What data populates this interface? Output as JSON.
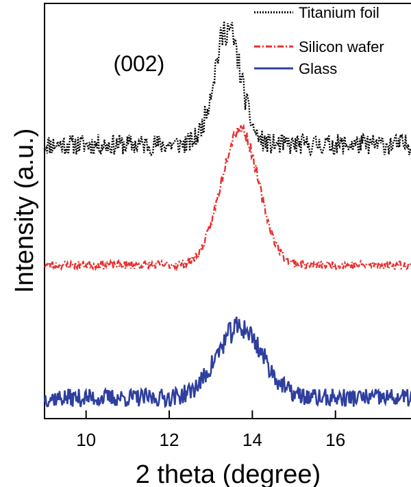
{
  "chart_data": {
    "type": "line",
    "xlabel": "2 theta (degree)",
    "ylabel": "Intensity (a.u.)",
    "xlim": [
      9,
      17.9
    ],
    "x_ticks": [
      10,
      12,
      14,
      16
    ],
    "y_ticks_shown": false,
    "grid": false,
    "legend_position": "top-right",
    "annotation": {
      "text": "(002)",
      "x": 12.8
    },
    "series": [
      {
        "name": "Titanium foil",
        "color": "#000000",
        "dash": "dotted",
        "baseline": 0.66,
        "noise": 0.025,
        "peak_center": 13.4,
        "peak_height": 0.28,
        "peak_width": 0.32,
        "seed": 11
      },
      {
        "name": "Silicon wafer",
        "color": "#e8302f",
        "dash": "dash-dot",
        "baseline": 0.37,
        "noise": 0.01,
        "peak_center": 13.7,
        "peak_height": 0.33,
        "peak_width": 0.45,
        "seed": 23
      },
      {
        "name": "Glass",
        "color": "#2f3f9e",
        "dash": "solid",
        "baseline": 0.05,
        "noise": 0.022,
        "peak_center": 13.7,
        "peak_height": 0.17,
        "peak_width": 0.55,
        "seed": 37
      }
    ]
  }
}
